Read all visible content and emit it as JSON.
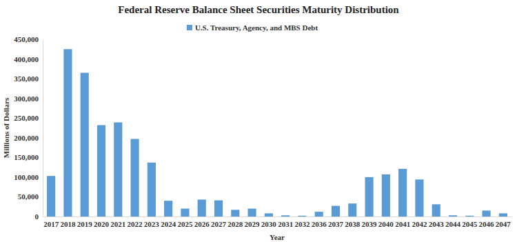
{
  "chart_data": {
    "type": "bar",
    "title": "Federal Reserve Balance Sheet Securities Maturity Distribution",
    "x_label": "Year",
    "y_label": "Millions of Dollars",
    "categories": [
      "2017",
      "2018",
      "2019",
      "2020",
      "2021",
      "2022",
      "2023",
      "2024",
      "2025",
      "2026",
      "2027",
      "2028",
      "2029",
      "2030",
      "2031",
      "2032",
      "2036",
      "2037",
      "2038",
      "2039",
      "2040",
      "2041",
      "2042",
      "2043",
      "2044",
      "2045",
      "2046",
      "2047"
    ],
    "series": [
      {
        "name": "U.S. Treasury, Agency, and MBS Debt",
        "color": "#5b9bd5",
        "values": [
          103000,
          425000,
          365000,
          232000,
          239000,
          197000,
          137000,
          40000,
          20000,
          43000,
          41000,
          17000,
          20000,
          8000,
          3000,
          2000,
          12000,
          27000,
          33000,
          100000,
          107000,
          121000,
          94000,
          31000,
          3000,
          2000,
          15000,
          8000
        ]
      }
    ],
    "ylim": [
      0,
      450000
    ],
    "yticks": [
      0,
      {
        "value": 50000,
        "label": "50,000"
      },
      {
        "value": 100000,
        "label": "100,000"
      },
      {
        "value": 150000,
        "label": "150,000"
      },
      {
        "value": 200000,
        "label": "200,000"
      },
      {
        "value": 250000,
        "label": "250,000"
      },
      {
        "value": 300000,
        "label": "300,000"
      },
      {
        "value": 350000,
        "label": "350,000"
      },
      {
        "value": 400000,
        "label": "400,000"
      },
      {
        "value": 450000,
        "label": "450,000"
      }
    ],
    "grid": false,
    "legend": "top"
  }
}
